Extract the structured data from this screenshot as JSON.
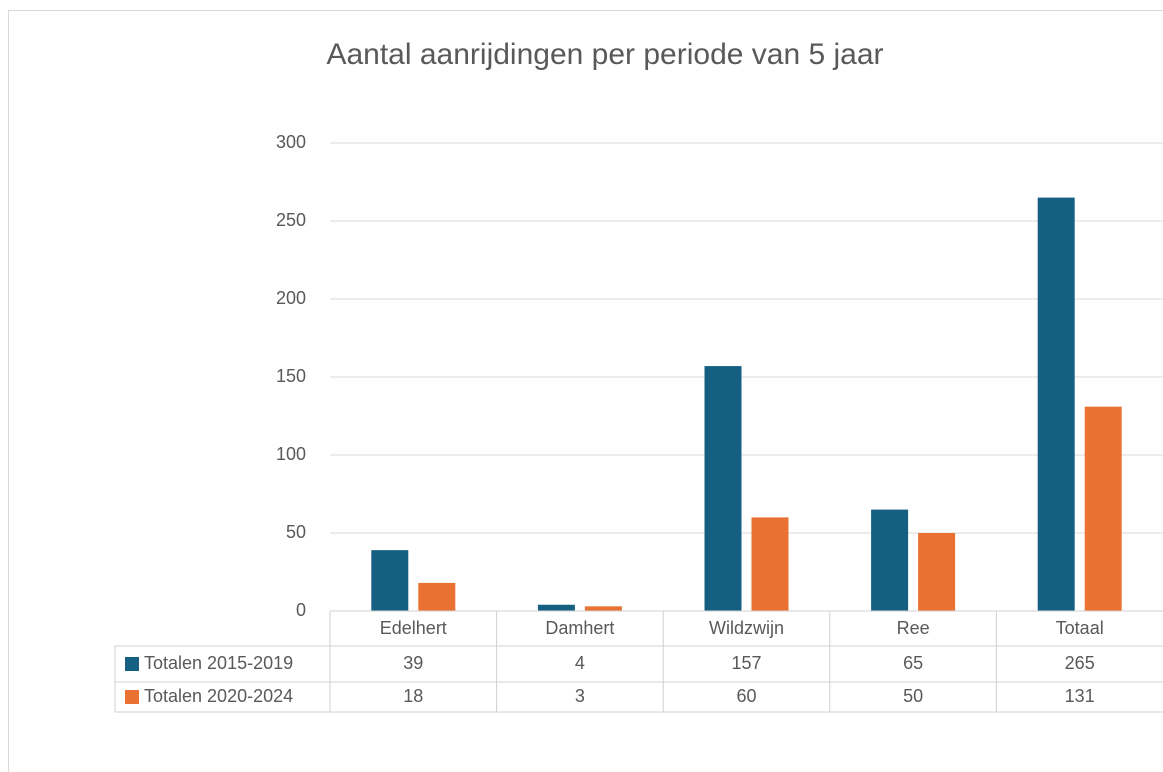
{
  "chart_data": {
    "type": "bar",
    "title": "Aantal aanrijdingen per periode van 5 jaar",
    "categories": [
      "Edelhert",
      "Damhert",
      "Wildzwijn",
      "Ree",
      "Totaal"
    ],
    "series": [
      {
        "name": "Totalen 2015-2019",
        "color": "#156082",
        "values": [
          39,
          4,
          157,
          65,
          265
        ]
      },
      {
        "name": "Totalen 2020-2024",
        "color": "#e97132",
        "values": [
          18,
          3,
          60,
          50,
          131
        ]
      }
    ],
    "ylim": [
      0,
      300
    ],
    "yticks": [
      0,
      50,
      100,
      150,
      200,
      250,
      300
    ],
    "grid": true,
    "data_table": true
  }
}
